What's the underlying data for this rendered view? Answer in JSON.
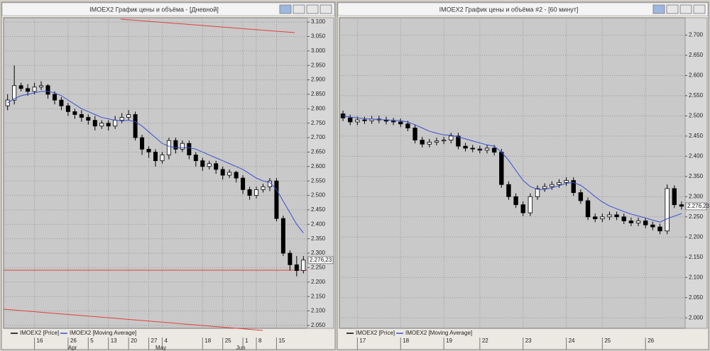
{
  "chart_data": [
    {
      "type": "candlestick",
      "title": "IMOEX2 График цены и объёма - [Дневной]",
      "last_label": "2.276,23",
      "xlim": [
        -0.6,
        44.6
      ],
      "ylim": [
        2040,
        3115
      ],
      "grid": true,
      "xticks": [
        {
          "value": 4,
          "label": "16"
        },
        {
          "value": 9,
          "label": "26"
        },
        {
          "value": 12,
          "label": "5"
        },
        {
          "value": 15,
          "label": "13"
        },
        {
          "value": 18,
          "label": "20"
        },
        {
          "value": 21,
          "label": "27"
        },
        {
          "value": 23,
          "label": "4"
        },
        {
          "value": 29,
          "label": "18"
        },
        {
          "value": 32,
          "label": "25"
        },
        {
          "value": 35,
          "label": "1"
        },
        {
          "value": 37,
          "label": "8"
        },
        {
          "value": 40,
          "label": "15"
        }
      ],
      "month_ticks": [
        {
          "value": 9,
          "label": "Apr"
        },
        {
          "value": 22,
          "label": "May"
        },
        {
          "value": 34,
          "label": "Jun"
        }
      ],
      "yticks": [
        {
          "value": 2050,
          "label": "2.050"
        },
        {
          "value": 2100,
          "label": "2.100"
        },
        {
          "value": 2150,
          "label": "2.150"
        },
        {
          "value": 2200,
          "label": "2.200"
        },
        {
          "value": 2250,
          "label": "2.250"
        },
        {
          "value": 2300,
          "label": "2.300"
        },
        {
          "value": 2350,
          "label": "2.350"
        },
        {
          "value": 2400,
          "label": "2.400"
        },
        {
          "value": 2450,
          "label": "2.450"
        },
        {
          "value": 2500,
          "label": "2.500"
        },
        {
          "value": 2550,
          "label": "2.550"
        },
        {
          "value": 2600,
          "label": "2.600"
        },
        {
          "value": 2650,
          "label": "2.650"
        },
        {
          "value": 2700,
          "label": "2.700"
        },
        {
          "value": 2750,
          "label": "2.750"
        },
        {
          "value": 2800,
          "label": "2.800"
        },
        {
          "value": 2850,
          "label": "2.850"
        },
        {
          "value": 2900,
          "label": "2.900"
        },
        {
          "value": 2950,
          "label": "2.950"
        },
        {
          "value": 3000,
          "label": "3.000"
        },
        {
          "value": 3050,
          "label": "3.050"
        },
        {
          "value": 3100,
          "label": "3.100"
        }
      ],
      "series": [
        {
          "name": "IMOEX2 [Price]",
          "color": "#000000",
          "open": [
            2810,
            2830,
            2880,
            2870,
            2860,
            2875,
            2880,
            2850,
            2830,
            2810,
            2790,
            2780,
            2770,
            2760,
            2740,
            2750,
            2740,
            2760,
            2770,
            2780,
            2700,
            2660,
            2650,
            2620,
            2640,
            2690,
            2660,
            2680,
            2640,
            2620,
            2600,
            2610,
            2590,
            2570,
            2580,
            2560,
            2520,
            2500,
            2520,
            2530,
            2550,
            2420,
            2300,
            2260,
            2240
          ],
          "high": [
            2850,
            2950,
            2890,
            2885,
            2890,
            2895,
            2885,
            2860,
            2840,
            2820,
            2800,
            2795,
            2780,
            2775,
            2760,
            2760,
            2775,
            2785,
            2795,
            2790,
            2710,
            2670,
            2660,
            2650,
            2700,
            2700,
            2690,
            2690,
            2650,
            2630,
            2620,
            2620,
            2600,
            2590,
            2585,
            2570,
            2530,
            2530,
            2540,
            2560,
            2560,
            2430,
            2310,
            2290,
            2290
          ],
          "low": [
            2795,
            2815,
            2860,
            2845,
            2850,
            2865,
            2835,
            2815,
            2795,
            2775,
            2765,
            2755,
            2745,
            2725,
            2730,
            2725,
            2730,
            2750,
            2760,
            2690,
            2640,
            2630,
            2600,
            2610,
            2625,
            2645,
            2650,
            2625,
            2600,
            2585,
            2590,
            2575,
            2555,
            2560,
            2545,
            2505,
            2485,
            2490,
            2510,
            2515,
            2410,
            2290,
            2240,
            2220,
            2230
          ],
          "close": [
            2830,
            2880,
            2870,
            2860,
            2875,
            2880,
            2850,
            2830,
            2810,
            2790,
            2780,
            2770,
            2760,
            2740,
            2750,
            2740,
            2760,
            2770,
            2780,
            2700,
            2660,
            2650,
            2620,
            2640,
            2690,
            2660,
            2680,
            2640,
            2620,
            2600,
            2610,
            2590,
            2570,
            2580,
            2560,
            2520,
            2500,
            2520,
            2530,
            2550,
            2420,
            2300,
            2260,
            2240,
            2276.23
          ]
        },
        {
          "name": "IMOEX2 [Moving Average]",
          "color": "#3a4fd0",
          "values": [
            2820,
            2835,
            2845,
            2850,
            2855,
            2860,
            2860,
            2855,
            2845,
            2830,
            2815,
            2800,
            2790,
            2780,
            2770,
            2765,
            2760,
            2758,
            2760,
            2755,
            2740,
            2720,
            2700,
            2680,
            2670,
            2665,
            2665,
            2665,
            2660,
            2650,
            2640,
            2630,
            2620,
            2610,
            2600,
            2590,
            2575,
            2560,
            2550,
            2545,
            2520,
            2480,
            2440,
            2400,
            2370
          ]
        }
      ]
    },
    {
      "type": "candlestick",
      "title": "IMOEX2 График цены и объёма #2 - [60 минут]",
      "last_label": "2.276,23",
      "xlim": [
        -0.5,
        47.5
      ],
      "ylim": [
        1974,
        2743
      ],
      "grid": true,
      "xticks": [
        {
          "value": 2,
          "label": "17"
        },
        {
          "value": 8,
          "label": "18"
        },
        {
          "value": 14,
          "label": "19"
        },
        {
          "value": 19,
          "label": "22"
        },
        {
          "value": 25,
          "label": "23"
        },
        {
          "value": 31,
          "label": "24"
        },
        {
          "value": 36,
          "label": "25"
        },
        {
          "value": 42,
          "label": "26"
        }
      ],
      "yticks": [
        {
          "value": 2000,
          "label": "2.000"
        },
        {
          "value": 2050,
          "label": "2.050"
        },
        {
          "value": 2100,
          "label": "2.100"
        },
        {
          "value": 2150,
          "label": "2.150"
        },
        {
          "value": 2200,
          "label": "2.200"
        },
        {
          "value": 2250,
          "label": "2.250"
        },
        {
          "value": 2300,
          "label": "2.300"
        },
        {
          "value": 2350,
          "label": "2.350"
        },
        {
          "value": 2400,
          "label": "2.400"
        },
        {
          "value": 2450,
          "label": "2.450"
        },
        {
          "value": 2500,
          "label": "2.500"
        },
        {
          "value": 2550,
          "label": "2.550"
        },
        {
          "value": 2600,
          "label": "2.600"
        },
        {
          "value": 2650,
          "label": "2.650"
        },
        {
          "value": 2700,
          "label": "2.700"
        }
      ],
      "series": [
        {
          "name": "IMOEX2 [Price]",
          "color": "#000000",
          "open": [
            2505,
            2495,
            2485,
            2490,
            2488,
            2492,
            2490,
            2487,
            2485,
            2480,
            2470,
            2440,
            2430,
            2435,
            2438,
            2440,
            2450,
            2425,
            2420,
            2418,
            2415,
            2420,
            2410,
            2330,
            2300,
            2280,
            2260,
            2300,
            2320,
            2325,
            2330,
            2335,
            2340,
            2310,
            2290,
            2250,
            2245,
            2250,
            2255,
            2250,
            2240,
            2235,
            2240,
            2230,
            2225,
            2215,
            2320,
            2280
          ],
          "high": [
            2513,
            2503,
            2498,
            2498,
            2500,
            2500,
            2498,
            2495,
            2493,
            2488,
            2478,
            2448,
            2443,
            2446,
            2448,
            2458,
            2458,
            2433,
            2428,
            2426,
            2428,
            2428,
            2418,
            2338,
            2308,
            2288,
            2308,
            2328,
            2333,
            2338,
            2343,
            2348,
            2348,
            2318,
            2298,
            2258,
            2258,
            2263,
            2263,
            2258,
            2248,
            2248,
            2248,
            2238,
            2233,
            2330,
            2328,
            2288
          ],
          "low": [
            2487,
            2477,
            2477,
            2480,
            2480,
            2482,
            2479,
            2477,
            2472,
            2462,
            2432,
            2422,
            2422,
            2427,
            2430,
            2432,
            2417,
            2412,
            2410,
            2407,
            2407,
            2402,
            2322,
            2292,
            2272,
            2252,
            2252,
            2292,
            2312,
            2317,
            2322,
            2327,
            2302,
            2282,
            2242,
            2237,
            2237,
            2242,
            2242,
            2232,
            2227,
            2227,
            2222,
            2217,
            2207,
            2207,
            2272,
            2268
          ],
          "close": [
            2495,
            2485,
            2490,
            2488,
            2492,
            2490,
            2487,
            2485,
            2480,
            2470,
            2440,
            2430,
            2435,
            2438,
            2440,
            2450,
            2425,
            2420,
            2418,
            2415,
            2420,
            2410,
            2330,
            2300,
            2280,
            2260,
            2300,
            2320,
            2325,
            2330,
            2335,
            2340,
            2310,
            2290,
            2250,
            2245,
            2250,
            2255,
            2250,
            2240,
            2235,
            2240,
            2230,
            2225,
            2215,
            2320,
            2280,
            2276.23
          ]
        },
        {
          "name": "IMOEX2 [Moving Average]",
          "color": "#3a4fd0",
          "values": [
            2500,
            2497,
            2495,
            2493,
            2492,
            2491,
            2490,
            2489,
            2488,
            2485,
            2478,
            2470,
            2462,
            2457,
            2453,
            2452,
            2448,
            2443,
            2438,
            2433,
            2428,
            2425,
            2410,
            2390,
            2365,
            2340,
            2325,
            2318,
            2318,
            2322,
            2327,
            2333,
            2335,
            2328,
            2315,
            2300,
            2287,
            2277,
            2270,
            2263,
            2257,
            2252,
            2247,
            2242,
            2237,
            2245,
            2252,
            2258
          ]
        }
      ]
    }
  ]
}
